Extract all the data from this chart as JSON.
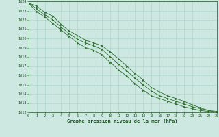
{
  "x": [
    0,
    1,
    2,
    3,
    4,
    5,
    6,
    7,
    8,
    9,
    10,
    11,
    12,
    13,
    14,
    15,
    16,
    17,
    18,
    19,
    20,
    21,
    22,
    23
  ],
  "line1": [
    1023.8,
    1023.5,
    1022.8,
    1022.4,
    1021.5,
    1020.8,
    1020.3,
    1019.8,
    1019.5,
    1019.2,
    1018.5,
    1017.8,
    1017.0,
    1016.2,
    1015.5,
    1014.7,
    1014.2,
    1013.8,
    1013.5,
    1013.2,
    1012.8,
    1012.5,
    1012.2,
    1012.1
  ],
  "line2": [
    1023.8,
    1023.2,
    1022.5,
    1022.0,
    1021.2,
    1020.5,
    1019.9,
    1019.5,
    1019.2,
    1018.8,
    1018.0,
    1017.2,
    1016.5,
    1015.7,
    1015.0,
    1014.3,
    1013.8,
    1013.5,
    1013.2,
    1012.9,
    1012.6,
    1012.4,
    1012.2,
    1012.0
  ],
  "line3": [
    1023.8,
    1022.9,
    1022.3,
    1021.6,
    1020.9,
    1020.2,
    1019.5,
    1019.0,
    1018.7,
    1018.2,
    1017.4,
    1016.6,
    1015.9,
    1015.1,
    1014.4,
    1013.8,
    1013.5,
    1013.2,
    1012.9,
    1012.6,
    1012.4,
    1012.2,
    1012.1,
    1012.0
  ],
  "line_color": "#2d6e2d",
  "marker_color": "#2d6e2d",
  "background_color": "#cce8e0",
  "grid_color": "#a8d4ca",
  "text_color": "#1a5020",
  "xlabel": "Graphe pression niveau de la mer (hPa)",
  "ylim_min": 1012,
  "ylim_max": 1024,
  "xlim_min": 0,
  "xlim_max": 23
}
